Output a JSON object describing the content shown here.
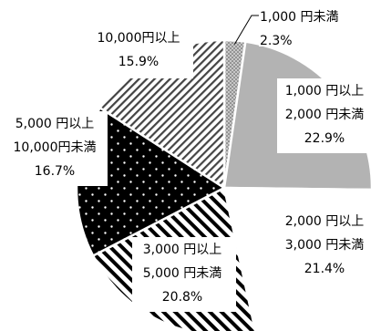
{
  "chart_data": {
    "type": "pie",
    "title": "",
    "start_angle_deg": 0,
    "direction": "clockwise",
    "slices": [
      {
        "lines": [
          "1,000 円未満",
          "2.3%"
        ],
        "value": 2.3,
        "pattern": "dots-small",
        "fill": "#b0b0b0"
      },
      {
        "lines": [
          "1,000 円以上",
          "2,000 円未満",
          "22.9%"
        ],
        "value": 22.9,
        "pattern": "solid",
        "fill": "#b3b3b3"
      },
      {
        "lines": [
          "2,000 円以上",
          "3,000 円未満",
          "21.4%"
        ],
        "value": 21.4,
        "pattern": "solid",
        "fill": "#ffffff"
      },
      {
        "lines": [
          "3,000 円以上",
          "5,000 円未満",
          "20.8%"
        ],
        "value": 20.8,
        "pattern": "diagonal-thick",
        "fill": "#ffffff"
      },
      {
        "lines": [
          "5,000 円以上",
          "10,000円未満",
          "16.7%"
        ],
        "value": 16.7,
        "pattern": "dots-on-black",
        "fill": "#000000"
      },
      {
        "lines": [
          "10,000円以上",
          "15.9%"
        ],
        "value": 15.9,
        "pattern": "diagonal-thin",
        "fill": "#ffffff"
      }
    ]
  }
}
